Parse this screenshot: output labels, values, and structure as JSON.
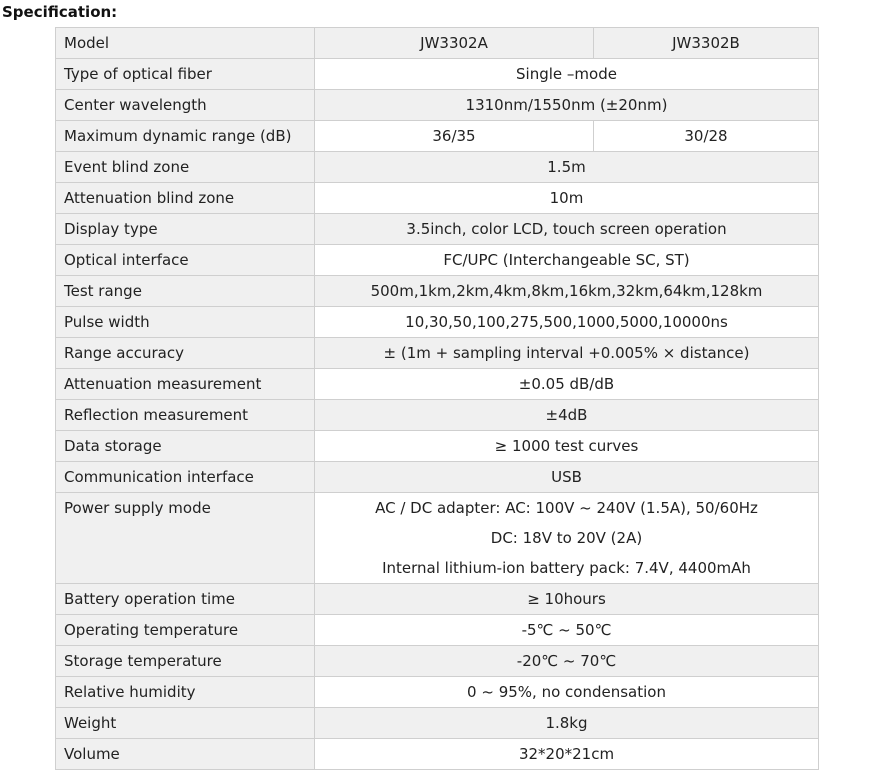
{
  "title": "Specification:",
  "header": {
    "label": "Model",
    "models": [
      "JW3302A",
      "JW3302B"
    ]
  },
  "rows": [
    {
      "label": "Type of optical fiber",
      "value": "Single –mode"
    },
    {
      "label": "Center wavelength",
      "value": "1310nm/1550nm (±20nm)"
    },
    {
      "label": "Maximum dynamic range (dB)",
      "values": [
        "36/35",
        "30/28"
      ]
    },
    {
      "label": "Event blind zone",
      "value": "1.5m"
    },
    {
      "label": "Attenuation blind zone",
      "value": "10m"
    },
    {
      "label": "Display type",
      "value": "3.5inch, color LCD, touch screen operation"
    },
    {
      "label": "Optical interface",
      "value": "FC/UPC (Interchangeable SC, ST)"
    },
    {
      "label": "Test range",
      "value": "500m,1km,2km,4km,8km,16km,32km,64km,128km"
    },
    {
      "label": "Pulse width",
      "value": "10,30,50,100,275,500,1000,5000,10000ns"
    },
    {
      "label": "Range accuracy",
      "value": "± (1m + sampling interval +0.005% × distance)"
    },
    {
      "label": "Attenuation measurement",
      "value": "±0.05 dB/dB"
    },
    {
      "label": "Reflection measurement",
      "value": "±4dB"
    },
    {
      "label": "Data storage",
      "value": "≥ 1000 test curves"
    },
    {
      "label": "Communication interface",
      "value": "USB"
    },
    {
      "label": "Power supply mode",
      "lines": [
        "AC / DC adapter: AC: 100V ~ 240V (1.5A), 50/60Hz",
        "DC: 18V to 20V (2A)",
        "Internal lithium-ion battery pack: 7.4V, 4400mAh"
      ]
    },
    {
      "label": "Battery operation time",
      "value": "≥ 10hours"
    },
    {
      "label": "Operating temperature",
      "value": "-5℃ ~ 50℃"
    },
    {
      "label": "Storage temperature",
      "value": "-20℃ ~ 70℃"
    },
    {
      "label": "Relative humidity",
      "value": "0 ~ 95%, no condensation"
    },
    {
      "label": "Weight",
      "value": "1.8kg"
    },
    {
      "label": "Volume",
      "value": "32*20*21cm"
    }
  ]
}
